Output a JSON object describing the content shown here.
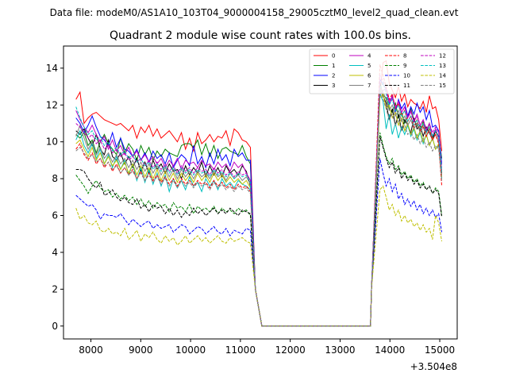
{
  "suptitle": "Data file: modeM0/AS1A10_103T04_9000004158_29005cztM0_level2_quad_clean.evt",
  "chart_data": {
    "type": "line",
    "title": "Quadrant 2 module wise count rates with 100.0s bins.",
    "xlabel": "",
    "ylabel": "",
    "offset_label": "+3.504e8",
    "xlim": [
      7450,
      15350
    ],
    "ylim": [
      -0.7,
      15.2
    ],
    "xticks": [
      8000,
      9000,
      10000,
      11000,
      12000,
      13000,
      14000,
      15000
    ],
    "xtick_labels": [
      "8000",
      "9000",
      "10000",
      "11000",
      "12000",
      "13000",
      "14000",
      "15000"
    ],
    "yticks": [
      0,
      2,
      4,
      6,
      8,
      10,
      12,
      14
    ],
    "ytick_labels": [
      "0",
      "2",
      "4",
      "6",
      "8",
      "10",
      "12",
      "14"
    ],
    "grid": false,
    "legend_position": "top-right",
    "series": [
      {
        "name": "0",
        "color": "#ff0000",
        "dash": "solid",
        "seg1": [
          12.3,
          12.7,
          11.0,
          11.3,
          11.5,
          11.6,
          11.4,
          11.2,
          11.1,
          11.0,
          10.9,
          11.0,
          10.8,
          10.6,
          10.9,
          10.2,
          10.8,
          10.5,
          10.9,
          10.3,
          10.7,
          10.2,
          10.4,
          10.6,
          10.3,
          10.0,
          10.5,
          9.6,
          10.2,
          9.5,
          10.5,
          9.9,
          10.1,
          10.4,
          10.0,
          10.3,
          10.2,
          10.6,
          9.8,
          10.7,
          10.5,
          10.1,
          10.0,
          9.7
        ],
        "seg2": [
          12.6,
          14.3,
          14.4,
          13.2,
          12.8,
          12.4,
          13.0,
          12.2,
          12.6,
          11.9,
          12.3,
          12.1,
          12.0,
          11.8,
          12.2,
          11.6,
          12.5,
          11.8,
          11.9,
          11.2,
          9.5
        ]
      },
      {
        "name": "1",
        "color": "#008000",
        "dash": "solid",
        "seg1": [
          10.4,
          10.2,
          10.5,
          9.8,
          10.1,
          9.4,
          10.0,
          10.4,
          9.9,
          9.6,
          9.3,
          10.2,
          9.4,
          9.9,
          9.6,
          9.0,
          9.8,
          9.3,
          9.7,
          9.0,
          9.5,
          9.2,
          9.6,
          9.4,
          9.3,
          9.2,
          9.8,
          9.9,
          9.9,
          9.7,
          10.1,
          9.3,
          9.9,
          9.2,
          9.8,
          9.1,
          9.6,
          9.7,
          9.5,
          9.4,
          9.3,
          9.8,
          9.2,
          8.8
        ],
        "seg2": [
          12.8,
          12.5,
          12.4,
          11.8,
          11.6,
          12.1,
          11.3,
          11.6,
          11.0,
          11.4,
          11.8,
          11.2,
          10.9,
          10.6,
          11.1,
          10.5,
          11.0,
          10.2,
          10.6,
          10.3,
          9.1
        ]
      },
      {
        "name": "2",
        "color": "#0000ff",
        "dash": "solid",
        "seg1": [
          11.3,
          11.0,
          10.5,
          10.9,
          11.4,
          10.8,
          10.3,
          10.1,
          9.8,
          10.5,
          9.7,
          10.2,
          9.6,
          9.5,
          9.2,
          9.6,
          9.0,
          9.4,
          8.9,
          9.5,
          9.1,
          9.3,
          8.8,
          9.4,
          8.6,
          9.0,
          9.3,
          9.1,
          8.7,
          9.8,
          8.8,
          9.2,
          8.6,
          9.4,
          8.8,
          9.6,
          9.0,
          9.3,
          8.7,
          9.6,
          9.2,
          9.4,
          9.0,
          9.0
        ],
        "seg2": [
          13.4,
          13.1,
          12.9,
          12.0,
          12.5,
          11.6,
          12.3,
          11.8,
          12.1,
          11.4,
          11.9,
          11.5,
          12.1,
          11.6,
          11.9,
          11.2,
          11.7,
          10.8,
          10.9,
          10.6,
          8.8
        ]
      },
      {
        "name": "3",
        "color": "#000000",
        "dash": "solid",
        "seg1": [
          10.6,
          10.4,
          10.7,
          10.2,
          9.8,
          10.4,
          9.6,
          9.3,
          10.1,
          9.2,
          9.0,
          9.4,
          8.8,
          9.2,
          8.6,
          9.1,
          8.4,
          8.9,
          8.3,
          9.0,
          8.5,
          8.8,
          8.3,
          8.8,
          8.4,
          8.5,
          8.0,
          8.7,
          8.2,
          8.6,
          8.3,
          8.9,
          8.1,
          8.7,
          8.2,
          8.6,
          8.1,
          8.7,
          8.3,
          8.5,
          8.2,
          8.7,
          8.4,
          7.6
        ],
        "seg2": [
          13.2,
          12.5,
          12.1,
          11.2,
          11.8,
          10.9,
          11.5,
          10.6,
          11.2,
          10.9,
          10.5,
          11.3,
          10.7,
          10.9,
          10.3,
          10.8,
          10.5,
          10.1,
          10.6,
          10.2,
          8.3
        ]
      },
      {
        "name": "4",
        "color": "#bf00bf",
        "dash": "solid",
        "seg1": [
          11.7,
          11.2,
          10.8,
          10.5,
          10.9,
          10.4,
          10.0,
          10.3,
          9.6,
          10.1,
          9.5,
          9.8,
          9.3,
          9.7,
          9.2,
          9.5,
          9.0,
          9.3,
          8.9,
          9.2,
          8.8,
          9.1,
          8.6,
          9.0,
          8.7,
          9.1,
          8.5,
          9.0,
          8.8,
          8.9,
          8.6,
          9.0,
          8.7,
          8.8,
          8.5,
          8.9,
          8.6,
          8.8,
          8.4,
          8.9,
          8.6,
          8.8,
          8.3,
          7.9
        ],
        "seg2": [
          12.5,
          12.8,
          12.9,
          12.1,
          12.4,
          11.8,
          12.2,
          11.6,
          11.9,
          11.3,
          11.7,
          11.1,
          11.5,
          10.9,
          11.2,
          10.6,
          11.0,
          10.3,
          10.7,
          10.2,
          8.4
        ]
      },
      {
        "name": "5",
        "color": "#00bfbf",
        "dash": "solid",
        "seg1": [
          10.1,
          10.6,
          9.8,
          9.4,
          9.9,
          9.1,
          9.6,
          8.8,
          9.3,
          8.6,
          9.2,
          8.5,
          9.0,
          8.2,
          8.8,
          7.9,
          8.6,
          7.8,
          8.5,
          7.7,
          8.3,
          7.6,
          8.2,
          7.3,
          8.0,
          7.5,
          7.9,
          7.4,
          8.1,
          7.6,
          7.8,
          7.3,
          8.0,
          7.6,
          7.9,
          7.4,
          8.0,
          7.6,
          7.8,
          7.5,
          7.9,
          7.7,
          7.6,
          7.4
        ],
        "seg2": [
          12.6,
          12.2,
          10.7,
          11.5,
          10.4,
          11.0,
          10.2,
          10.8,
          10.4,
          10.9,
          10.3,
          10.7,
          10.1,
          10.5,
          9.9,
          10.4,
          9.8,
          10.2,
          9.6,
          9.8,
          8.0
        ]
      },
      {
        "name": "6",
        "color": "#bfbf00",
        "dash": "solid",
        "seg1": [
          9.9,
          10.1,
          9.6,
          9.2,
          9.7,
          9.0,
          9.4,
          8.8,
          9.2,
          8.7,
          9.0,
          8.5,
          8.9,
          8.3,
          8.8,
          8.2,
          8.7,
          8.1,
          8.6,
          8.0,
          8.5,
          7.9,
          8.4,
          7.9,
          8.3,
          7.8,
          8.3,
          7.9,
          8.2,
          7.8,
          8.3,
          7.9,
          8.2,
          7.8,
          8.3,
          7.9,
          8.2,
          7.8,
          8.1,
          7.8,
          8.0,
          7.7,
          7.9,
          7.5
        ],
        "seg2": [
          12.4,
          12.6,
          11.8,
          12.0,
          11.3,
          11.6,
          10.9,
          11.3,
          10.6,
          11.0,
          10.4,
          10.8,
          10.2,
          10.6,
          10.0,
          10.4,
          9.8,
          10.2,
          9.6,
          9.9,
          8.1
        ]
      },
      {
        "name": "7",
        "color": "#808080",
        "dash": "solid",
        "seg1": [
          10.3,
          10.9,
          10.2,
          9.6,
          10.0,
          9.3,
          9.7,
          9.1,
          9.4,
          8.9,
          9.3,
          8.8,
          9.1,
          8.6,
          9.0,
          8.5,
          8.9,
          8.4,
          8.8,
          8.3,
          8.7,
          8.2,
          8.6,
          8.1,
          8.5,
          8.0,
          8.5,
          8.1,
          8.4,
          8.0,
          8.4,
          8.1,
          8.3,
          8.0,
          8.4,
          8.1,
          8.3,
          7.9,
          8.3,
          8.0,
          8.2,
          7.9,
          8.1,
          7.7
        ],
        "seg2": [
          13.0,
          12.7,
          12.3,
          11.7,
          12.0,
          11.4,
          11.7,
          11.1,
          11.4,
          10.9,
          11.2,
          10.7,
          11.0,
          10.5,
          10.8,
          10.3,
          10.6,
          10.1,
          10.4,
          10.0,
          8.2
        ]
      },
      {
        "name": "8",
        "color": "#ff0000",
        "dash": "dashed",
        "seg1": [
          9.6,
          9.9,
          9.3,
          9.0,
          9.4,
          8.8,
          9.1,
          8.6,
          8.9,
          8.4,
          8.8,
          8.3,
          8.6,
          8.2,
          8.5,
          8.0,
          8.4,
          7.9,
          8.3,
          7.9,
          8.2,
          7.8,
          8.1,
          7.7,
          8.0,
          7.6,
          8.0,
          7.7,
          7.9,
          7.6,
          7.9,
          7.7,
          7.8,
          7.5,
          7.9,
          7.6,
          7.8,
          7.5,
          7.7,
          7.4,
          7.7,
          7.5,
          7.6,
          7.3
        ],
        "seg2": [
          14.2,
          13.6,
          13.0,
          12.3,
          12.6,
          11.8,
          12.1,
          11.4,
          11.7,
          11.1,
          11.4,
          10.8,
          11.2,
          10.6,
          10.9,
          10.3,
          10.7,
          10.1,
          10.4,
          9.9,
          7.6
        ]
      },
      {
        "name": "9",
        "color": "#008000",
        "dash": "dashed",
        "seg1": [
          8.2,
          7.9,
          7.6,
          7.2,
          7.6,
          7.9,
          7.5,
          7.3,
          7.4,
          7.0,
          7.2,
          6.9,
          7.1,
          6.8,
          7.0,
          6.6,
          6.9,
          6.5,
          6.8,
          6.4,
          6.7,
          6.5,
          6.6,
          6.2,
          6.7,
          6.4,
          6.5,
          6.2,
          6.6,
          6.1,
          6.5,
          6.3,
          6.4,
          6.2,
          6.5,
          6.1,
          6.4,
          6.2,
          6.3,
          6.1,
          6.4,
          6.2,
          6.3,
          6.0
        ],
        "seg2": [
          10.5,
          9.8,
          9.2,
          8.8,
          9.1,
          8.5,
          8.7,
          8.2,
          8.4,
          8.0,
          8.2,
          7.8,
          8.0,
          7.6,
          7.8,
          7.4,
          7.6,
          7.2,
          7.5,
          7.3,
          6.0
        ]
      },
      {
        "name": "10",
        "color": "#0000ff",
        "dash": "dashed",
        "seg1": [
          7.1,
          6.9,
          6.7,
          6.5,
          6.6,
          6.3,
          5.8,
          6.1,
          6.0,
          6.0,
          5.9,
          6.1,
          5.8,
          5.5,
          5.8,
          5.6,
          5.4,
          5.6,
          5.7,
          5.3,
          5.5,
          5.3,
          5.4,
          5.5,
          5.1,
          5.3,
          5.5,
          5.4,
          5.0,
          5.2,
          5.4,
          5.3,
          5.0,
          5.2,
          5.4,
          5.1,
          5.0,
          5.3,
          4.9,
          5.2,
          5.1,
          5.0,
          5.3,
          5.2
        ],
        "seg2": [
          9.1,
          8.3,
          7.6,
          8.0,
          7.3,
          7.7,
          6.9,
          7.2,
          6.6,
          6.9,
          6.5,
          6.8,
          6.3,
          6.6,
          6.1,
          6.4,
          6.0,
          6.3,
          5.9,
          6.1,
          5.1
        ]
      },
      {
        "name": "11",
        "color": "#000000",
        "dash": "dashed",
        "seg1": [
          8.5,
          8.5,
          8.4,
          8.0,
          7.7,
          7.5,
          7.8,
          7.1,
          7.2,
          7.4,
          7.0,
          6.8,
          7.0,
          6.7,
          6.6,
          6.9,
          6.4,
          6.6,
          6.2,
          6.6,
          6.4,
          6.5,
          6.1,
          6.4,
          6.0,
          6.3,
          5.9,
          6.2,
          6.0,
          6.4,
          6.1,
          6.3,
          6.0,
          6.2,
          6.4,
          6.1,
          6.3,
          6.1,
          6.4,
          6.2,
          6.0,
          6.3,
          6.2,
          6.1
        ],
        "seg2": [
          10.3,
          9.7,
          9.1,
          8.6,
          8.9,
          8.3,
          8.6,
          8.0,
          8.3,
          7.9,
          8.1,
          7.7,
          7.9,
          7.5,
          7.7,
          7.4,
          7.6,
          7.2,
          7.4,
          7.2,
          5.9
        ]
      },
      {
        "name": "12",
        "color": "#bf00bf",
        "dash": "dashed",
        "seg1": [
          11.0,
          10.8,
          10.5,
          10.2,
          10.4,
          9.9,
          10.1,
          9.6,
          9.8,
          9.4,
          9.6,
          9.2,
          9.4,
          9.0,
          9.2,
          8.9,
          9.1,
          8.7,
          9.0,
          8.6,
          8.9,
          8.5,
          8.8,
          8.4,
          8.7,
          8.3,
          8.7,
          8.4,
          8.6,
          8.3,
          8.6,
          8.4,
          8.5,
          8.2,
          8.6,
          8.3,
          8.5,
          8.2,
          8.4,
          8.1,
          8.4,
          8.2,
          8.3,
          7.9
        ],
        "seg2": [
          13.6,
          13.3,
          12.8,
          12.2,
          12.5,
          11.9,
          12.2,
          11.6,
          11.9,
          11.3,
          11.6,
          11.1,
          11.4,
          10.9,
          11.2,
          10.7,
          11.0,
          10.5,
          10.8,
          10.5,
          8.6
        ]
      },
      {
        "name": "13",
        "color": "#00bfbf",
        "dash": "dashed",
        "seg1": [
          11.9,
          11.3,
          10.8,
          10.4,
          10.6,
          10.1,
          10.3,
          9.8,
          10.0,
          9.5,
          9.7,
          9.3,
          9.5,
          9.1,
          9.3,
          8.9,
          9.1,
          8.7,
          8.9,
          8.5,
          8.8,
          8.4,
          8.7,
          8.3,
          8.6,
          8.2,
          8.6,
          8.3,
          8.5,
          8.2,
          8.5,
          8.3,
          8.4,
          8.1,
          8.5,
          8.2,
          8.4,
          8.1,
          8.3,
          8.0,
          8.3,
          8.1,
          8.2,
          7.8
        ],
        "seg2": [
          12.9,
          13.2,
          12.6,
          12.0,
          12.3,
          11.7,
          12.0,
          11.4,
          11.7,
          11.1,
          11.4,
          10.9,
          11.2,
          10.7,
          11.0,
          10.5,
          10.8,
          10.3,
          10.6,
          10.3,
          8.4
        ]
      },
      {
        "name": "14",
        "color": "#bfbf00",
        "dash": "dashed",
        "seg1": [
          6.4,
          5.8,
          6.0,
          5.6,
          5.5,
          5.7,
          5.2,
          5.1,
          5.3,
          5.0,
          5.1,
          4.9,
          5.3,
          4.7,
          4.9,
          5.2,
          4.6,
          5.0,
          4.8,
          5.1,
          4.7,
          4.5,
          4.9,
          4.6,
          4.8,
          4.4,
          4.6,
          4.9,
          4.5,
          4.7,
          4.9,
          4.6,
          4.8,
          4.5,
          4.7,
          4.9,
          4.6,
          4.5,
          4.8,
          4.6,
          4.7,
          4.8,
          4.6,
          4.5
        ],
        "seg2": [
          7.4,
          7.6,
          7.0,
          6.3,
          6.6,
          6.0,
          6.3,
          5.7,
          6.0,
          5.6,
          5.8,
          5.4,
          5.6,
          5.2,
          5.5,
          5.1,
          5.3,
          4.7,
          6.0,
          5.6,
          4.6
        ]
      },
      {
        "name": "15",
        "color": "#808080",
        "dash": "dashed",
        "seg1": [
          9.5,
          9.7,
          9.4,
          9.1,
          9.3,
          8.9,
          9.1,
          8.7,
          8.9,
          8.5,
          8.7,
          8.3,
          8.6,
          8.2,
          8.4,
          8.0,
          8.3,
          7.9,
          8.2,
          7.8,
          8.1,
          7.7,
          8.0,
          7.6,
          7.9,
          7.5,
          7.9,
          7.6,
          7.8,
          7.5,
          7.8,
          7.6,
          7.7,
          7.4,
          7.8,
          7.5,
          7.7,
          7.4,
          7.6,
          7.3,
          7.6,
          7.4,
          7.5,
          7.2
        ],
        "seg2": [
          12.8,
          12.3,
          11.8,
          11.2,
          11.5,
          10.9,
          11.2,
          10.6,
          10.9,
          10.4,
          10.6,
          10.1,
          10.4,
          9.9,
          10.2,
          9.7,
          10.0,
          9.5,
          9.8,
          9.6,
          7.9
        ]
      }
    ],
    "seg1_start": 7700,
    "seg1_end": 11200,
    "zero_start": 11430,
    "zero_end": 13610,
    "seg2_start": 13800,
    "seg2_end": 15040,
    "drop_to": 11300,
    "rise_from": 13630
  }
}
